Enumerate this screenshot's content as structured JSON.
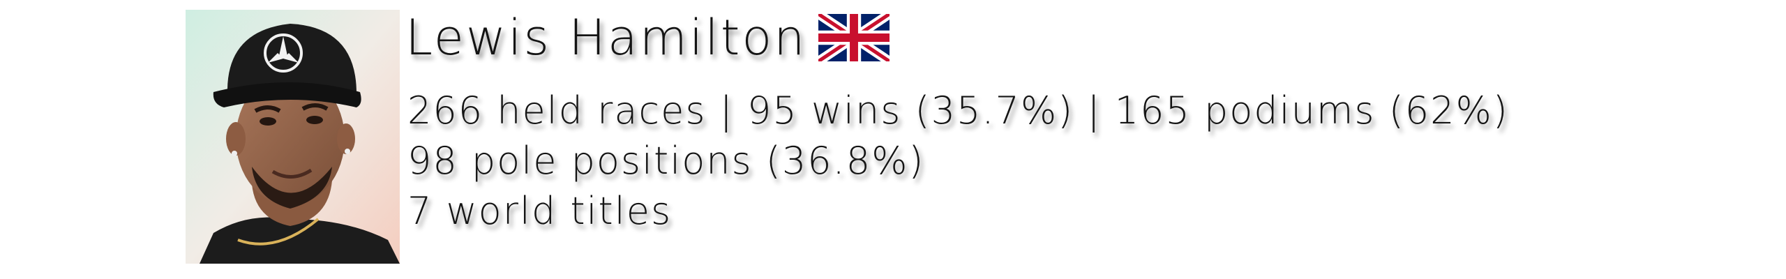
{
  "driver": {
    "name": "Lewis Hamilton",
    "flag_icon": "united-kingdom-flag-icon",
    "photo_icon": "driver-portrait-photo"
  },
  "stats": {
    "line1": "266 held races | 95 wins (35.7%) | 165 podiums (62%)",
    "line2": "98 pole positions (36.8%)",
    "line3": "7 world titles"
  },
  "colors": {
    "text": "#141414",
    "flag_blue": "#012169",
    "flag_red": "#C8102E",
    "flag_white": "#FFFFFF"
  }
}
